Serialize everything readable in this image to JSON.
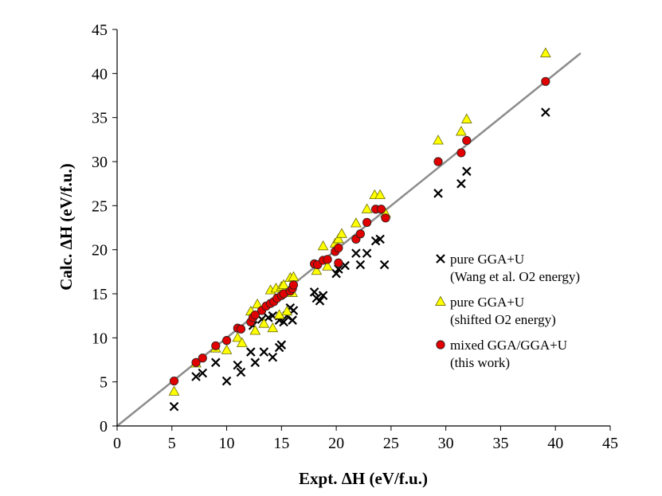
{
  "chart_data": {
    "type": "scatter",
    "title": "",
    "xlabel": "Expt. ΔH (eV/f.u.)",
    "ylabel": "Calc. ΔH (eV/f.u.)",
    "xlim": [
      0,
      45
    ],
    "ylim": [
      0,
      45
    ],
    "xticks": [
      "0",
      "5",
      "10",
      "15",
      "20",
      "25",
      "30",
      "35",
      "40",
      "45"
    ],
    "yticks": [
      "0",
      "5",
      "10",
      "15",
      "20",
      "25",
      "30",
      "35",
      "40",
      "45"
    ],
    "grid": false,
    "legend_position": "right",
    "reference_line": {
      "name": "y = x",
      "from": [
        0,
        0
      ],
      "to": [
        42.3,
        42.3
      ],
      "color": "#8c8c8c"
    },
    "series": [
      {
        "name": "pure GGA+U (Wang et al. O2 energy)",
        "legend_lines": [
          "pure GGA+U",
          "(Wang et al. O2 energy)"
        ],
        "marker": "x",
        "color": "#000000",
        "points": [
          [
            5.2,
            2.2
          ],
          [
            7.2,
            5.6
          ],
          [
            7.8,
            6.0
          ],
          [
            9.0,
            7.2
          ],
          [
            10.0,
            5.1
          ],
          [
            11.0,
            6.9
          ],
          [
            11.3,
            6.1
          ],
          [
            12.2,
            8.4
          ],
          [
            12.6,
            7.2
          ],
          [
            13.4,
            8.4
          ],
          [
            14.2,
            7.8
          ],
          [
            14.8,
            8.9
          ],
          [
            15.0,
            9.2
          ],
          [
            12.4,
            11.4
          ],
          [
            13.2,
            12.1
          ],
          [
            13.8,
            12.3
          ],
          [
            14.2,
            12.5
          ],
          [
            14.8,
            12.0
          ],
          [
            15.2,
            11.8
          ],
          [
            15.5,
            12.5
          ],
          [
            15.8,
            13.4
          ],
          [
            16.0,
            12.0
          ],
          [
            16.1,
            13.1
          ],
          [
            18.0,
            15.2
          ],
          [
            18.2,
            14.5
          ],
          [
            18.5,
            14.2
          ],
          [
            18.8,
            14.8
          ],
          [
            20.0,
            17.3
          ],
          [
            20.2,
            17.8
          ],
          [
            20.8,
            18.2
          ],
          [
            21.8,
            19.6
          ],
          [
            22.2,
            18.3
          ],
          [
            22.8,
            19.6
          ],
          [
            23.6,
            21.0
          ],
          [
            24.0,
            21.2
          ],
          [
            24.4,
            18.3
          ],
          [
            29.3,
            26.4
          ],
          [
            31.4,
            27.5
          ],
          [
            31.9,
            28.9
          ],
          [
            39.1,
            35.6
          ]
        ]
      },
      {
        "name": "pure GGA+U (shifted O2 energy)",
        "legend_lines": [
          "pure GGA+U",
          "(shifted O2 energy)"
        ],
        "marker": "triangle",
        "color": "#ffff00",
        "points": [
          [
            5.2,
            3.9
          ],
          [
            7.2,
            7.1
          ],
          [
            9.0,
            8.8
          ],
          [
            10.0,
            8.6
          ],
          [
            11.0,
            10.0
          ],
          [
            11.4,
            9.4
          ],
          [
            12.2,
            13.0
          ],
          [
            12.6,
            10.8
          ],
          [
            12.8,
            13.8
          ],
          [
            13.4,
            11.6
          ],
          [
            14.0,
            15.4
          ],
          [
            14.2,
            11.1
          ],
          [
            14.5,
            15.6
          ],
          [
            14.8,
            12.6
          ],
          [
            15.0,
            15.8
          ],
          [
            15.2,
            16.0
          ],
          [
            15.5,
            13.0
          ],
          [
            15.8,
            16.8
          ],
          [
            16.0,
            15.1
          ],
          [
            16.1,
            16.9
          ],
          [
            18.2,
            17.6
          ],
          [
            18.8,
            20.4
          ],
          [
            19.2,
            18.1
          ],
          [
            19.9,
            20.7
          ],
          [
            20.2,
            21.2
          ],
          [
            20.5,
            21.8
          ],
          [
            21.8,
            23.0
          ],
          [
            22.8,
            24.6
          ],
          [
            23.5,
            26.2
          ],
          [
            24.0,
            26.2
          ],
          [
            24.5,
            24.1
          ],
          [
            29.3,
            32.4
          ],
          [
            31.4,
            33.4
          ],
          [
            31.9,
            34.8
          ],
          [
            39.1,
            42.3
          ]
        ]
      },
      {
        "name": "mixed GGA/GGA+U (this work)",
        "legend_lines": [
          "mixed GGA/GGA+U",
          "(this work)"
        ],
        "marker": "circle",
        "color": "#e00000",
        "points": [
          [
            5.2,
            5.1
          ],
          [
            7.2,
            7.2
          ],
          [
            7.8,
            7.7
          ],
          [
            9.0,
            9.1
          ],
          [
            10.0,
            9.7
          ],
          [
            11.0,
            11.1
          ],
          [
            11.3,
            11.0
          ],
          [
            12.2,
            11.8
          ],
          [
            12.4,
            12.3
          ],
          [
            12.6,
            12.6
          ],
          [
            13.2,
            13.1
          ],
          [
            13.6,
            13.6
          ],
          [
            14.0,
            13.9
          ],
          [
            14.3,
            14.1
          ],
          [
            14.6,
            14.5
          ],
          [
            15.0,
            14.8
          ],
          [
            15.2,
            15.0
          ],
          [
            15.8,
            15.3
          ],
          [
            16.0,
            15.6
          ],
          [
            16.1,
            16.0
          ],
          [
            18.0,
            18.4
          ],
          [
            18.3,
            18.3
          ],
          [
            18.8,
            18.8
          ],
          [
            19.2,
            18.9
          ],
          [
            19.9,
            19.8
          ],
          [
            20.2,
            20.2
          ],
          [
            20.2,
            18.5
          ],
          [
            21.8,
            21.2
          ],
          [
            22.2,
            21.8
          ],
          [
            22.8,
            23.1
          ],
          [
            23.6,
            24.6
          ],
          [
            24.1,
            24.6
          ],
          [
            24.5,
            23.6
          ],
          [
            29.3,
            30.0
          ],
          [
            31.4,
            31.0
          ],
          [
            31.9,
            32.4
          ],
          [
            39.1,
            39.1
          ]
        ]
      }
    ]
  }
}
